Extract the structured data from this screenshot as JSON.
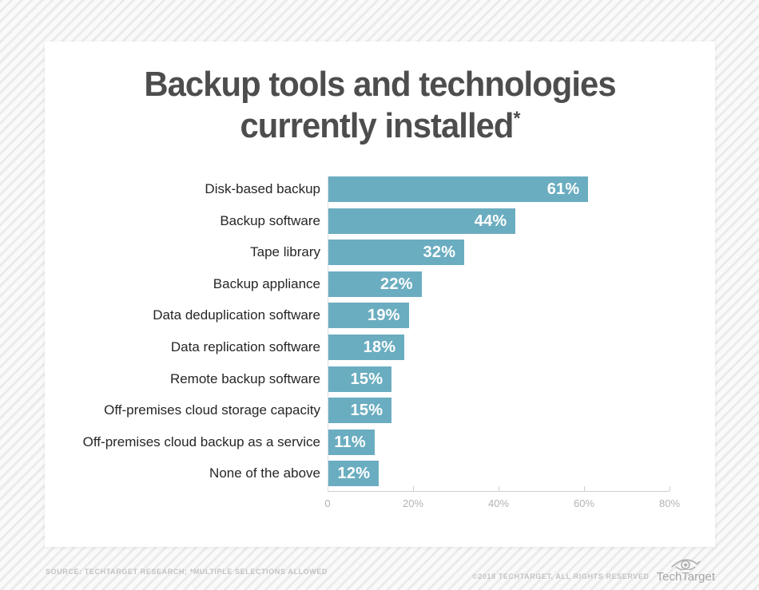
{
  "title": {
    "line1": "Backup tools and technologies",
    "line2": "currently installed",
    "footnote_marker": "*"
  },
  "chart_data": {
    "type": "bar",
    "orientation": "horizontal",
    "title": "Backup tools and technologies currently installed*",
    "categories": [
      "Disk-based backup",
      "Backup software",
      "Tape library",
      "Backup appliance",
      "Data deduplication software",
      "Data replication software",
      "Remote backup software",
      "Off-premises cloud storage capacity",
      "Off-premises cloud backup as a service",
      "None of the above"
    ],
    "values": [
      61,
      44,
      32,
      22,
      19,
      18,
      15,
      15,
      11,
      12
    ],
    "value_labels": [
      "61%",
      "44%",
      "32%",
      "22%",
      "19%",
      "18%",
      "15%",
      "15%",
      "11%",
      "12%"
    ],
    "xlim": [
      0,
      80
    ],
    "x_ticks": [
      {
        "label": "0",
        "value": 0
      },
      {
        "label": "20%",
        "value": 20
      },
      {
        "label": "40%",
        "value": 40
      },
      {
        "label": "60%",
        "value": 60
      },
      {
        "label": "80%",
        "value": 80
      }
    ],
    "grid": false,
    "legend": false,
    "bar_color": "#6badc0",
    "value_label_color": "#ffffff"
  },
  "footer": {
    "source": "SOURCE: TECHTARGET RESEARCH; *MULTIPLE SELECTIONS ALLOWED",
    "copyright": "©2018 TECHTARGET, ALL RIGHTS RESERVED",
    "brand": "TechTarget"
  },
  "colors": {
    "bar": "#6badc0",
    "title_text": "#4d4d4d",
    "category_text": "#262626",
    "axis_line": "#cfcfcf",
    "tick_text": "#b3b3b3",
    "footer_text": "#c3c3c3",
    "card_background": "#ffffff"
  }
}
